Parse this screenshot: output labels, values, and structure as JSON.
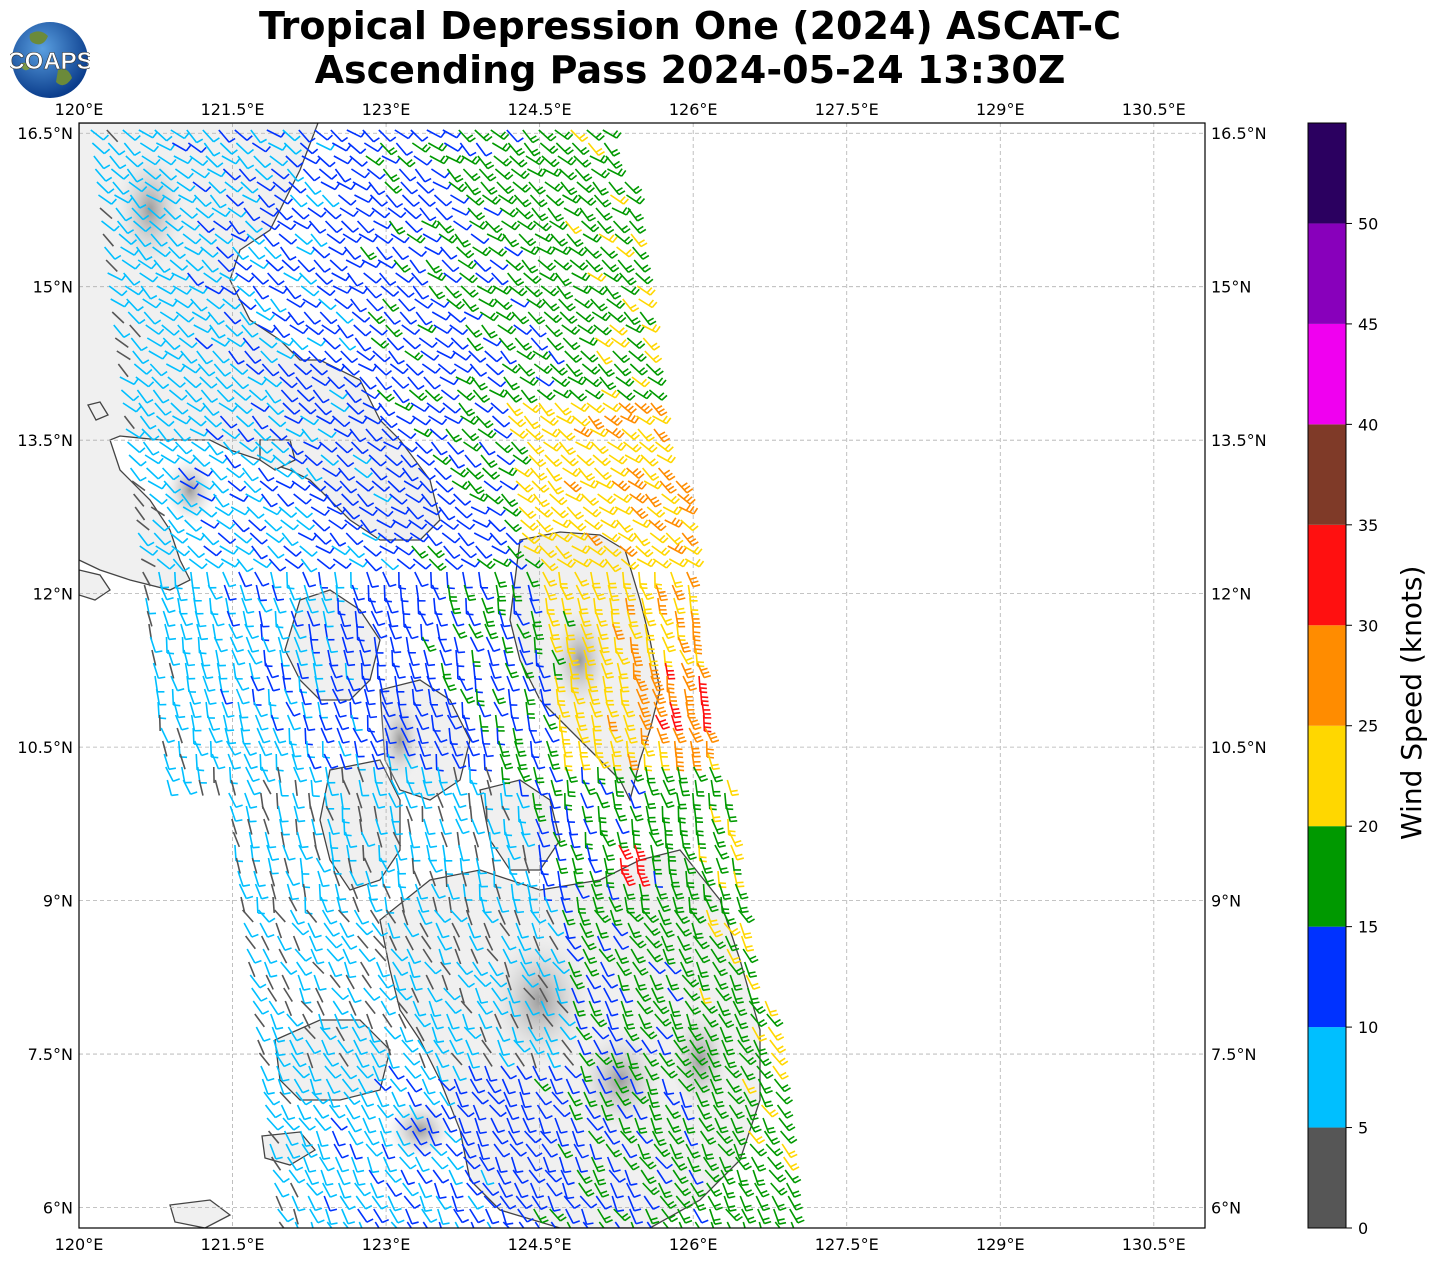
{
  "title": {
    "line1": "Tropical Depression One (2024) ASCAT-C",
    "line2": "Ascending Pass 2024-05-24 13:30Z"
  },
  "logo": {
    "text": "COAPS",
    "icon": "globe-logo-icon"
  },
  "map": {
    "projection": "PlateCarree",
    "lon_range": [
      120,
      131.0
    ],
    "lat_range": [
      5.8,
      16.6
    ],
    "lon_ticks": [
      "120°E",
      "121.5°E",
      "123°E",
      "124.5°E",
      "126°E",
      "127.5°E",
      "129°E",
      "130.5°E"
    ],
    "lat_ticks": [
      "16.5°N",
      "15°N",
      "13.5°N",
      "12°N",
      "10.5°N",
      "9°N",
      "7.5°N",
      "6°N"
    ],
    "gridlines": true,
    "background": "grayscale terrain with coastlines",
    "coastline_color": "#444444"
  },
  "colorbar": {
    "label": "Wind Speed (knots)",
    "ticks": [
      "0",
      "5",
      "10",
      "15",
      "20",
      "25",
      "30",
      "35",
      "40",
      "45",
      "50"
    ],
    "bins": [
      {
        "min": 0,
        "max": 5,
        "color": "#565656"
      },
      {
        "min": 5,
        "max": 10,
        "color": "#00bfff"
      },
      {
        "min": 10,
        "max": 15,
        "color": "#0032ff"
      },
      {
        "min": 15,
        "max": 20,
        "color": "#009900"
      },
      {
        "min": 20,
        "max": 25,
        "color": "#ffd700"
      },
      {
        "min": 25,
        "max": 30,
        "color": "#ff8c00"
      },
      {
        "min": 30,
        "max": 35,
        "color": "#ff1010"
      },
      {
        "min": 35,
        "max": 40,
        "color": "#7f3a28"
      },
      {
        "min": 40,
        "max": 45,
        "color": "#f000f0"
      },
      {
        "min": 45,
        "max": 50,
        "color": "#8800bb"
      },
      {
        "min": 50,
        "max": 55,
        "color": "#2b0060"
      }
    ]
  }
}
